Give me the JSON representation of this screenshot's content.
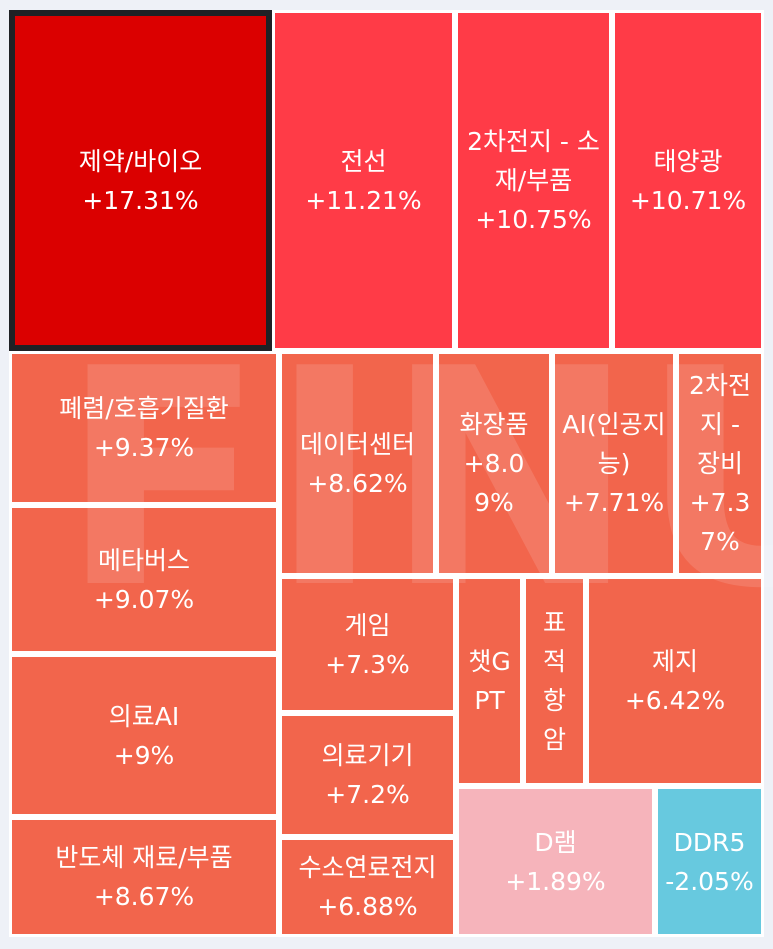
{
  "chart_data": {
    "type": "treemap",
    "watermark": "FINUP",
    "colors": {
      "strong_up": "#db0000",
      "up": "#ff3b47",
      "moderate_up": "#f2654c",
      "slight_up": "#f6b4bb",
      "down": "#67c9df",
      "border": "#ffffff"
    },
    "items": [
      {
        "name": "제약/바이오",
        "change": 17.31,
        "label": "+17.31%",
        "color": "#db0000",
        "selected": true
      },
      {
        "name": "전선",
        "change": 11.21,
        "label": "+11.21%",
        "color": "#ff3b47"
      },
      {
        "name": "2차전지 - 소재/부품",
        "change": 10.75,
        "label": "+10.75%",
        "color": "#ff3b47"
      },
      {
        "name": "태양광",
        "change": 10.71,
        "label": "+10.71%",
        "color": "#ff3b47"
      },
      {
        "name": "폐렴/호흡기질환",
        "change": 9.37,
        "label": "+9.37%",
        "color": "#f2654c"
      },
      {
        "name": "메타버스",
        "change": 9.07,
        "label": "+9.07%",
        "color": "#f2654c"
      },
      {
        "name": "의료AI",
        "change": 9.0,
        "label": "+9%",
        "color": "#f2654c"
      },
      {
        "name": "반도체 재료/부품",
        "change": 8.67,
        "label": "+8.67%",
        "color": "#f2654c"
      },
      {
        "name": "데이터센터",
        "change": 8.62,
        "label": "+8.62%",
        "color": "#f2654c"
      },
      {
        "name": "화장품",
        "change": 8.09,
        "label": "+8.09%",
        "color": "#f2654c"
      },
      {
        "name": "AI(인공지능)",
        "change": 7.71,
        "label": "+7.71%",
        "color": "#f2654c"
      },
      {
        "name": "2차전지 - 장비",
        "change": 7.37,
        "label": "+7.37%",
        "color": "#f2654c"
      },
      {
        "name": "게임",
        "change": 7.3,
        "label": "+7.3%",
        "color": "#f2654c"
      },
      {
        "name": "의료기기",
        "change": 7.2,
        "label": "+7.2%",
        "color": "#f2654c"
      },
      {
        "name": "수소연료전지",
        "change": 6.88,
        "label": "+6.88%",
        "color": "#f2654c"
      },
      {
        "name": "챗GPT",
        "change": null,
        "label": "",
        "color": "#f2654c"
      },
      {
        "name": "표적항암",
        "change": null,
        "label": "",
        "color": "#f2654c"
      },
      {
        "name": "제지",
        "change": 6.42,
        "label": "+6.42%",
        "color": "#f2654c"
      },
      {
        "name": "D램",
        "change": 1.89,
        "label": "+1.89%",
        "color": "#f6b4bb"
      },
      {
        "name": "DDR5",
        "change": -2.05,
        "label": "-2.05%",
        "color": "#67c9df"
      }
    ]
  }
}
